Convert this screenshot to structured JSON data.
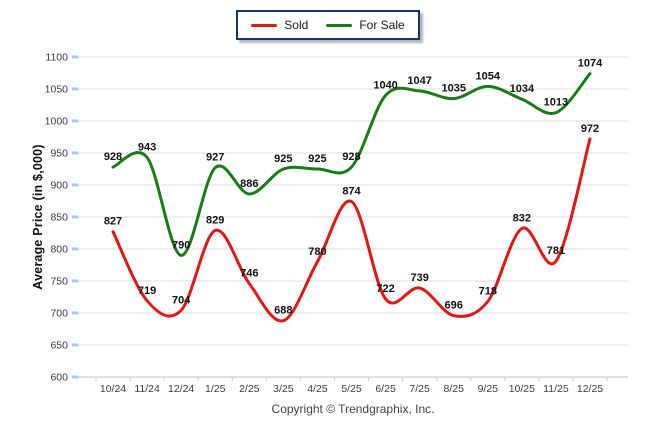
{
  "legend": {
    "items": [
      {
        "label": "Sold",
        "color": "#e11717"
      },
      {
        "label": "For Sale",
        "color": "#1c7a1c"
      }
    ],
    "border_color": "#17365d"
  },
  "y_axis_title": "Average Price (in $,000)",
  "footer": {
    "copyright": "Copyright © Trendgraphix, Inc."
  },
  "colors": {
    "gridline": "#e8e8e8",
    "axis_line": "#c4ccd6",
    "y_tick": "#9fcdf2",
    "tick_label": "#3c3c3c",
    "data_label": "#111111"
  },
  "chart_data": {
    "type": "line",
    "categories": [
      "10/24",
      "11/24",
      "12/24",
      "1/25",
      "2/25",
      "3/25",
      "4/25",
      "5/25",
      "6/25",
      "7/25",
      "8/25",
      "9/25",
      "10/25",
      "11/25",
      "12/25"
    ],
    "series": [
      {
        "name": "Sold",
        "color": "#e11717",
        "values": [
          827,
          719,
          704,
          829,
          746,
          688,
          780,
          874,
          722,
          739,
          696,
          718,
          832,
          781,
          972
        ]
      },
      {
        "name": "For Sale",
        "color": "#1c7a1c",
        "values": [
          928,
          943,
          790,
          927,
          886,
          925,
          925,
          928,
          1040,
          1047,
          1035,
          1054,
          1034,
          1013,
          1074
        ]
      }
    ],
    "title": "",
    "xlabel": "",
    "ylabel": "Average Price (in $,000)",
    "ylim": [
      600,
      1100
    ],
    "ytick_step": 50,
    "grid": true,
    "legend_position": "top-center",
    "data_labels": true,
    "smooth": true
  }
}
